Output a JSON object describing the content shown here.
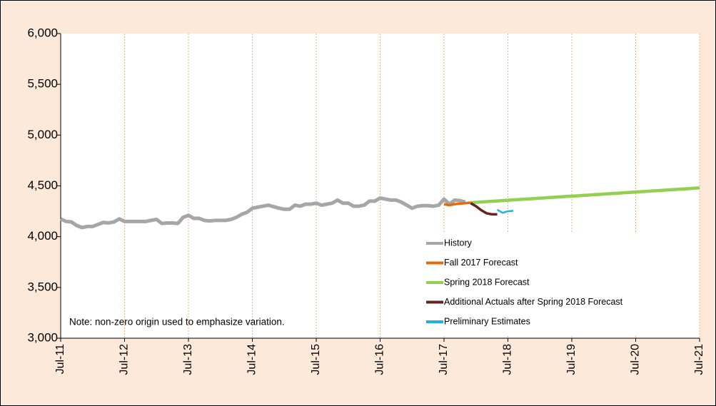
{
  "chart_data": {
    "type": "line",
    "annotation": "Note: non-zero origin used to emphasize variation.",
    "categories": [
      "Jul-11",
      null,
      null,
      null,
      null,
      null,
      null,
      null,
      null,
      null,
      null,
      null,
      "Jul-12",
      null,
      null,
      null,
      null,
      null,
      null,
      null,
      null,
      null,
      null,
      null,
      "Jul-13",
      null,
      null,
      null,
      null,
      null,
      null,
      null,
      null,
      null,
      null,
      null,
      "Jul-14",
      null,
      null,
      null,
      null,
      null,
      null,
      null,
      null,
      null,
      null,
      null,
      "Jul-15",
      null,
      null,
      null,
      null,
      null,
      null,
      null,
      null,
      null,
      null,
      null,
      "Jul-16",
      null,
      null,
      null,
      null,
      null,
      null,
      null,
      null,
      null,
      null,
      null,
      "Jul-17",
      null,
      null,
      null,
      null,
      null,
      null,
      null,
      null,
      null,
      null,
      null,
      "Jul-18",
      null,
      null,
      null,
      null,
      null,
      null,
      null,
      null,
      null,
      null,
      null,
      "Jul-19",
      null,
      null,
      null,
      null,
      null,
      null,
      null,
      null,
      null,
      null,
      null,
      "Jul-20",
      null,
      null,
      null,
      null,
      null,
      null,
      null,
      null,
      null,
      null,
      null,
      "Jul-21"
    ],
    "ylim": [
      3000,
      6000
    ],
    "yticks": [
      {
        "value": 3000,
        "label": "3,000"
      },
      {
        "value": 3500,
        "label": "3,500"
      },
      {
        "value": 4000,
        "label": "4,000"
      },
      {
        "value": 4500,
        "label": "4,500"
      },
      {
        "value": 5000,
        "label": "5,000"
      },
      {
        "value": 5500,
        "label": "5,500"
      },
      {
        "value": 6000,
        "label": "6,000"
      }
    ],
    "grid": true,
    "series": [
      {
        "name": "History",
        "color": "#a6a6a6",
        "values": [
          4175,
          4150,
          4145,
          4110,
          4090,
          4100,
          4100,
          4120,
          4140,
          4135,
          4145,
          4175,
          4150,
          4150,
          4150,
          4150,
          4150,
          4160,
          4170,
          4130,
          4135,
          4135,
          4130,
          4190,
          4210,
          4180,
          4180,
          4160,
          4155,
          4160,
          4160,
          4160,
          4170,
          4190,
          4220,
          4240,
          4280,
          4290,
          4300,
          4310,
          4295,
          4280,
          4270,
          4270,
          4310,
          4300,
          4320,
          4320,
          4330,
          4310,
          4320,
          4330,
          4360,
          4330,
          4330,
          4300,
          4300,
          4310,
          4350,
          4350,
          4380,
          4370,
          4360,
          4360,
          4340,
          4310,
          4280,
          4300,
          4305,
          4305,
          4300,
          4310,
          4370,
          4320,
          4360,
          4355,
          4340,
          null,
          null,
          null,
          null,
          null,
          null,
          null,
          null,
          null,
          null,
          null,
          null,
          null,
          null,
          null,
          null,
          null,
          null,
          null,
          null,
          null,
          null,
          null,
          null,
          null,
          null,
          null,
          null,
          null,
          null,
          null,
          null,
          null,
          null,
          null,
          null,
          null,
          null,
          null,
          null,
          null,
          null,
          null,
          null
        ]
      },
      {
        "name": "Fall 2017 Forecast",
        "color": "#e46c0a",
        "values": [
          null,
          null,
          null,
          null,
          null,
          null,
          null,
          null,
          null,
          null,
          null,
          null,
          null,
          null,
          null,
          null,
          null,
          null,
          null,
          null,
          null,
          null,
          null,
          null,
          null,
          null,
          null,
          null,
          null,
          null,
          null,
          null,
          null,
          null,
          null,
          null,
          null,
          null,
          null,
          null,
          null,
          null,
          null,
          null,
          null,
          null,
          null,
          null,
          null,
          null,
          null,
          null,
          null,
          null,
          null,
          null,
          null,
          null,
          null,
          null,
          null,
          null,
          null,
          null,
          null,
          null,
          null,
          null,
          null,
          null,
          null,
          null,
          4320,
          4310,
          4320,
          4325,
          4330,
          4335,
          null,
          null,
          null,
          null,
          null,
          null,
          null,
          null,
          null,
          null,
          null,
          null,
          null,
          null,
          null,
          null,
          null,
          null,
          null,
          null,
          null,
          null,
          null,
          null,
          null,
          null,
          null,
          null,
          null,
          null,
          null,
          null,
          null,
          null,
          null,
          null,
          null,
          null,
          null,
          null,
          null,
          null,
          null
        ]
      },
      {
        "name": "Spring 2018 Forecast",
        "color": "#92d050",
        "values": [
          null,
          null,
          null,
          null,
          null,
          null,
          null,
          null,
          null,
          null,
          null,
          null,
          null,
          null,
          null,
          null,
          null,
          null,
          null,
          null,
          null,
          null,
          null,
          null,
          null,
          null,
          null,
          null,
          null,
          null,
          null,
          null,
          null,
          null,
          null,
          null,
          null,
          null,
          null,
          null,
          null,
          null,
          null,
          null,
          null,
          null,
          null,
          null,
          null,
          null,
          null,
          null,
          null,
          null,
          null,
          null,
          null,
          null,
          null,
          null,
          null,
          null,
          null,
          null,
          null,
          null,
          null,
          null,
          null,
          null,
          null,
          null,
          null,
          null,
          null,
          null,
          null,
          4335,
          4338,
          4342,
          4345,
          4348,
          4352,
          4355,
          4359,
          4362,
          4365,
          4369,
          4372,
          4375,
          4379,
          4382,
          4386,
          4389,
          4392,
          4396,
          4399,
          4402,
          4406,
          4409,
          4413,
          4416,
          4419,
          4423,
          4426,
          4429,
          4433,
          4436,
          4440,
          4443,
          4446,
          4450,
          4453,
          4456,
          4460,
          4463,
          4467,
          4470,
          4473,
          4477,
          4480
        ]
      },
      {
        "name": "Additional Actuals after Spring 2018 Forecast",
        "color": "#632523",
        "values": [
          null,
          null,
          null,
          null,
          null,
          null,
          null,
          null,
          null,
          null,
          null,
          null,
          null,
          null,
          null,
          null,
          null,
          null,
          null,
          null,
          null,
          null,
          null,
          null,
          null,
          null,
          null,
          null,
          null,
          null,
          null,
          null,
          null,
          null,
          null,
          null,
          null,
          null,
          null,
          null,
          null,
          null,
          null,
          null,
          null,
          null,
          null,
          null,
          null,
          null,
          null,
          null,
          null,
          null,
          null,
          null,
          null,
          null,
          null,
          null,
          null,
          null,
          null,
          null,
          null,
          null,
          null,
          null,
          null,
          null,
          null,
          null,
          null,
          null,
          null,
          null,
          null,
          4330,
          4300,
          4260,
          4230,
          4220,
          4220,
          null,
          null,
          null,
          null,
          null,
          null,
          null,
          null,
          null,
          null,
          null,
          null,
          null,
          null,
          null,
          null,
          null,
          null,
          null,
          null,
          null,
          null,
          null,
          null,
          null,
          null,
          null,
          null,
          null,
          null,
          null,
          null,
          null,
          null,
          null,
          null,
          null,
          null
        ]
      },
      {
        "name": "Preliminary Estimates",
        "color": "#1fb0e6",
        "values": [
          null,
          null,
          null,
          null,
          null,
          null,
          null,
          null,
          null,
          null,
          null,
          null,
          null,
          null,
          null,
          null,
          null,
          null,
          null,
          null,
          null,
          null,
          null,
          null,
          null,
          null,
          null,
          null,
          null,
          null,
          null,
          null,
          null,
          null,
          null,
          null,
          null,
          null,
          null,
          null,
          null,
          null,
          null,
          null,
          null,
          null,
          null,
          null,
          null,
          null,
          null,
          null,
          null,
          null,
          null,
          null,
          null,
          null,
          null,
          null,
          null,
          null,
          null,
          null,
          null,
          null,
          null,
          null,
          null,
          null,
          null,
          null,
          null,
          null,
          null,
          null,
          null,
          null,
          null,
          null,
          null,
          null,
          4265,
          4235,
          4250,
          4255,
          null,
          null,
          null,
          null,
          null,
          null,
          null,
          null,
          null,
          null,
          null,
          null,
          null,
          null,
          null,
          null,
          null,
          null,
          null,
          null,
          null,
          null,
          null,
          null,
          null,
          null,
          null,
          null,
          null,
          null,
          null,
          null,
          null,
          null,
          null
        ]
      }
    ]
  }
}
